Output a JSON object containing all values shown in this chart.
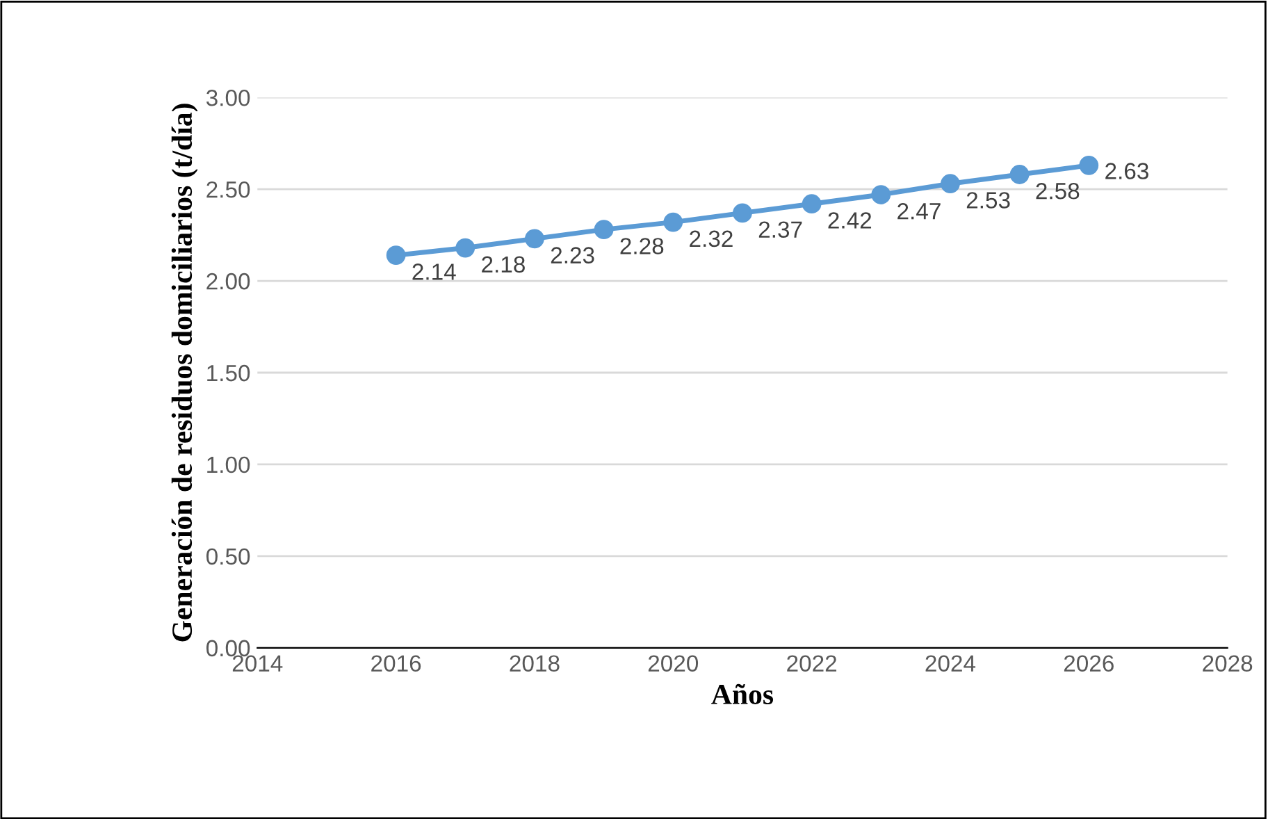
{
  "chart_data": {
    "type": "line",
    "xlabel": "Años",
    "ylabel": "Generación de residuos domiciliarios (t/día)",
    "x": [
      2016,
      2017,
      2018,
      2019,
      2020,
      2021,
      2022,
      2023,
      2024,
      2025,
      2026
    ],
    "series": [
      {
        "color": "#5b9bd5",
        "values": [
          2.14,
          2.18,
          2.23,
          2.28,
          2.32,
          2.37,
          2.42,
          2.47,
          2.53,
          2.58,
          2.63
        ]
      }
    ],
    "xlim": [
      2014,
      2028
    ],
    "xticks": [
      2014,
      2016,
      2018,
      2020,
      2022,
      2024,
      2026,
      2028
    ],
    "ylim": [
      0,
      3
    ],
    "yticks": [
      {
        "value": 0,
        "label": "0.00"
      },
      {
        "value": 0.5,
        "label": "0.50"
      },
      {
        "value": 1,
        "label": "1.00"
      },
      {
        "value": 1.5,
        "label": "1.50"
      },
      {
        "value": 2,
        "label": "2.00"
      },
      {
        "value": 2.5,
        "label": "2.50"
      },
      {
        "value": 3,
        "label": "3.00"
      }
    ],
    "grid": "y",
    "marker": "circle",
    "line_style": "solid",
    "data_labels": true,
    "legend": false
  }
}
